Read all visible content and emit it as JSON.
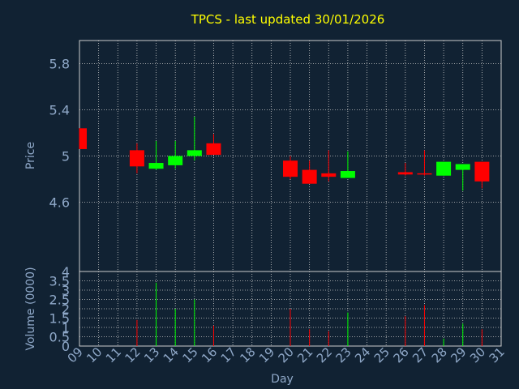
{
  "chart_data": {
    "type": "candlestick",
    "title": "TPCS - last updated 30/01/2026",
    "xlabel": "Day",
    "x_ticks": [
      "09",
      "10",
      "11",
      "12",
      "13",
      "14",
      "15",
      "16",
      "17",
      "18",
      "19",
      "20",
      "21",
      "22",
      "23",
      "24",
      "25",
      "26",
      "27",
      "28",
      "29",
      "30",
      "31"
    ],
    "price_panel": {
      "ylabel": "Price",
      "ylim": [
        4.0,
        6.0
      ],
      "y_ticks": [
        "4",
        "4.6",
        "5",
        "5.4",
        "5.8"
      ],
      "y_tick_values": [
        4.0,
        4.6,
        5.0,
        5.4,
        5.8
      ],
      "candles": [
        {
          "day": "09",
          "open": 5.24,
          "high": 5.24,
          "low": 5.06,
          "close": 5.06
        },
        {
          "day": "12",
          "open": 5.05,
          "high": 5.11,
          "low": 4.85,
          "close": 4.91
        },
        {
          "day": "13",
          "open": 4.89,
          "high": 5.13,
          "low": 4.88,
          "close": 4.94
        },
        {
          "day": "14",
          "open": 4.92,
          "high": 5.13,
          "low": 4.89,
          "close": 5.0
        },
        {
          "day": "15",
          "open": 5.0,
          "high": 5.34,
          "low": 4.96,
          "close": 5.05
        },
        {
          "day": "16",
          "open": 5.11,
          "high": 5.19,
          "low": 5.01,
          "close": 5.01
        },
        {
          "day": "20",
          "open": 4.96,
          "high": 5.0,
          "low": 4.8,
          "close": 4.82
        },
        {
          "day": "21",
          "open": 4.88,
          "high": 4.96,
          "low": 4.76,
          "close": 4.76
        },
        {
          "day": "22",
          "open": 4.85,
          "high": 5.05,
          "low": 4.78,
          "close": 4.82
        },
        {
          "day": "23",
          "open": 4.81,
          "high": 5.04,
          "low": 4.81,
          "close": 4.87
        },
        {
          "day": "26",
          "open": 4.86,
          "high": 4.94,
          "low": 4.83,
          "close": 4.84
        },
        {
          "day": "27",
          "open": 4.85,
          "high": 5.05,
          "low": 4.83,
          "close": 4.84
        },
        {
          "day": "28",
          "open": 4.83,
          "high": 4.95,
          "low": 4.83,
          "close": 4.95
        },
        {
          "day": "29",
          "open": 4.88,
          "high": 4.93,
          "low": 4.7,
          "close": 4.93
        },
        {
          "day": "30",
          "open": 4.95,
          "high": 4.95,
          "low": 4.72,
          "close": 4.78
        }
      ]
    },
    "volume_panel": {
      "ylabel": "Volume (0000)",
      "ylim": [
        0,
        4
      ],
      "y_ticks": [
        "0",
        "0.5",
        "1",
        "1.5",
        "2",
        "2.5",
        "3",
        "3.5"
      ],
      "y_tick_values": [
        0,
        0.5,
        1,
        1.5,
        2,
        2.5,
        3,
        3.5
      ],
      "bars": [
        {
          "day": "12",
          "value": 1.4,
          "direction": "down"
        },
        {
          "day": "13",
          "value": 3.4,
          "direction": "up"
        },
        {
          "day": "14",
          "value": 2.0,
          "direction": "up"
        },
        {
          "day": "15",
          "value": 2.5,
          "direction": "up"
        },
        {
          "day": "16",
          "value": 1.1,
          "direction": "down"
        },
        {
          "day": "20",
          "value": 2.0,
          "direction": "down"
        },
        {
          "day": "21",
          "value": 0.9,
          "direction": "down"
        },
        {
          "day": "22",
          "value": 0.8,
          "direction": "down"
        },
        {
          "day": "23",
          "value": 1.8,
          "direction": "up"
        },
        {
          "day": "26",
          "value": 1.6,
          "direction": "down"
        },
        {
          "day": "27",
          "value": 2.2,
          "direction": "down"
        },
        {
          "day": "28",
          "value": 0.4,
          "direction": "up"
        },
        {
          "day": "29",
          "value": 1.2,
          "direction": "up"
        },
        {
          "day": "30",
          "value": 0.9,
          "direction": "down"
        }
      ]
    },
    "grid": true,
    "colors": {
      "background": "#112233",
      "title": "#ffff00",
      "axis_text": "#8fa8c8",
      "grid": "#cccccc",
      "up": "#00ff00",
      "down": "#ff0000"
    }
  }
}
